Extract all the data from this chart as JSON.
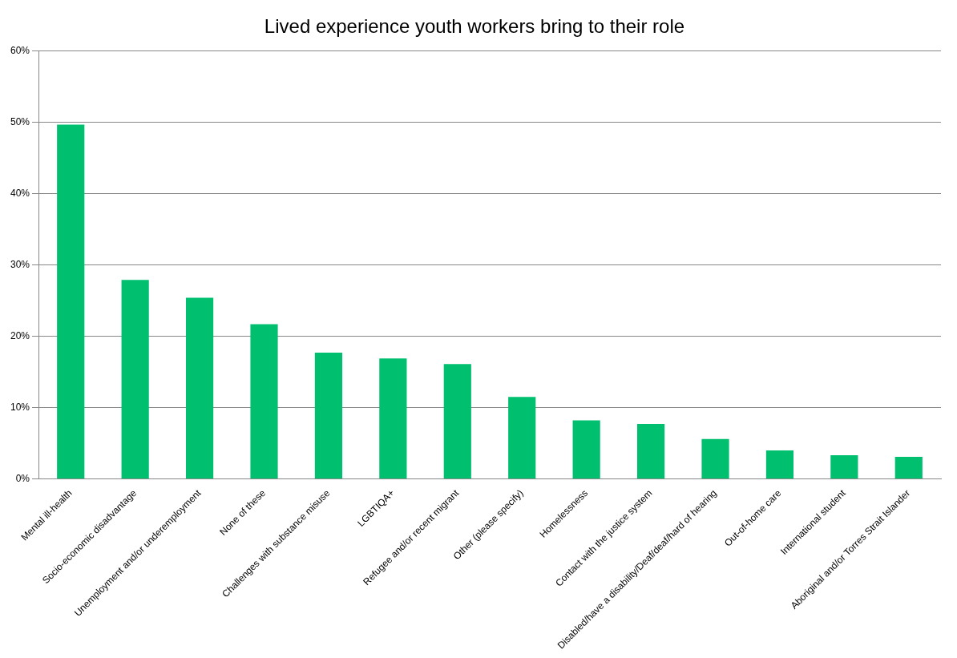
{
  "chart_data": {
    "type": "bar",
    "title": "Lived experience youth workers bring to their role",
    "categories": [
      "Mental ill-health",
      "Socio-economic disadvantage",
      "Unemployment and/or underemployment",
      "None of these",
      "Challenges with substance misuse",
      "LGBTIQA+",
      "Refugee and/or recent migrant",
      "Other (please specify)",
      "Homelessness",
      "Contact with the justice system",
      "Disabled/have a disability/Deaf/deaf/hard of hearing",
      "Out-of-home care",
      "International student",
      "Aboriginal and/or Torres Strait Islander"
    ],
    "values": [
      49.7,
      27.9,
      25.4,
      21.7,
      17.7,
      16.9,
      16.1,
      11.5,
      8.2,
      7.7,
      5.6,
      4.0,
      3.3,
      3.1
    ],
    "color": "#00bf6f",
    "ylim": [
      0,
      60
    ],
    "yticks": [
      {
        "value": 0,
        "label": "0%"
      },
      {
        "value": 10,
        "label": "10%"
      },
      {
        "value": 20,
        "label": "20%"
      },
      {
        "value": 30,
        "label": "30%"
      },
      {
        "value": 40,
        "label": "40%"
      },
      {
        "value": 50,
        "label": "50%"
      },
      {
        "value": 60,
        "label": "60%"
      }
    ],
    "grid": "y",
    "legend": false
  }
}
